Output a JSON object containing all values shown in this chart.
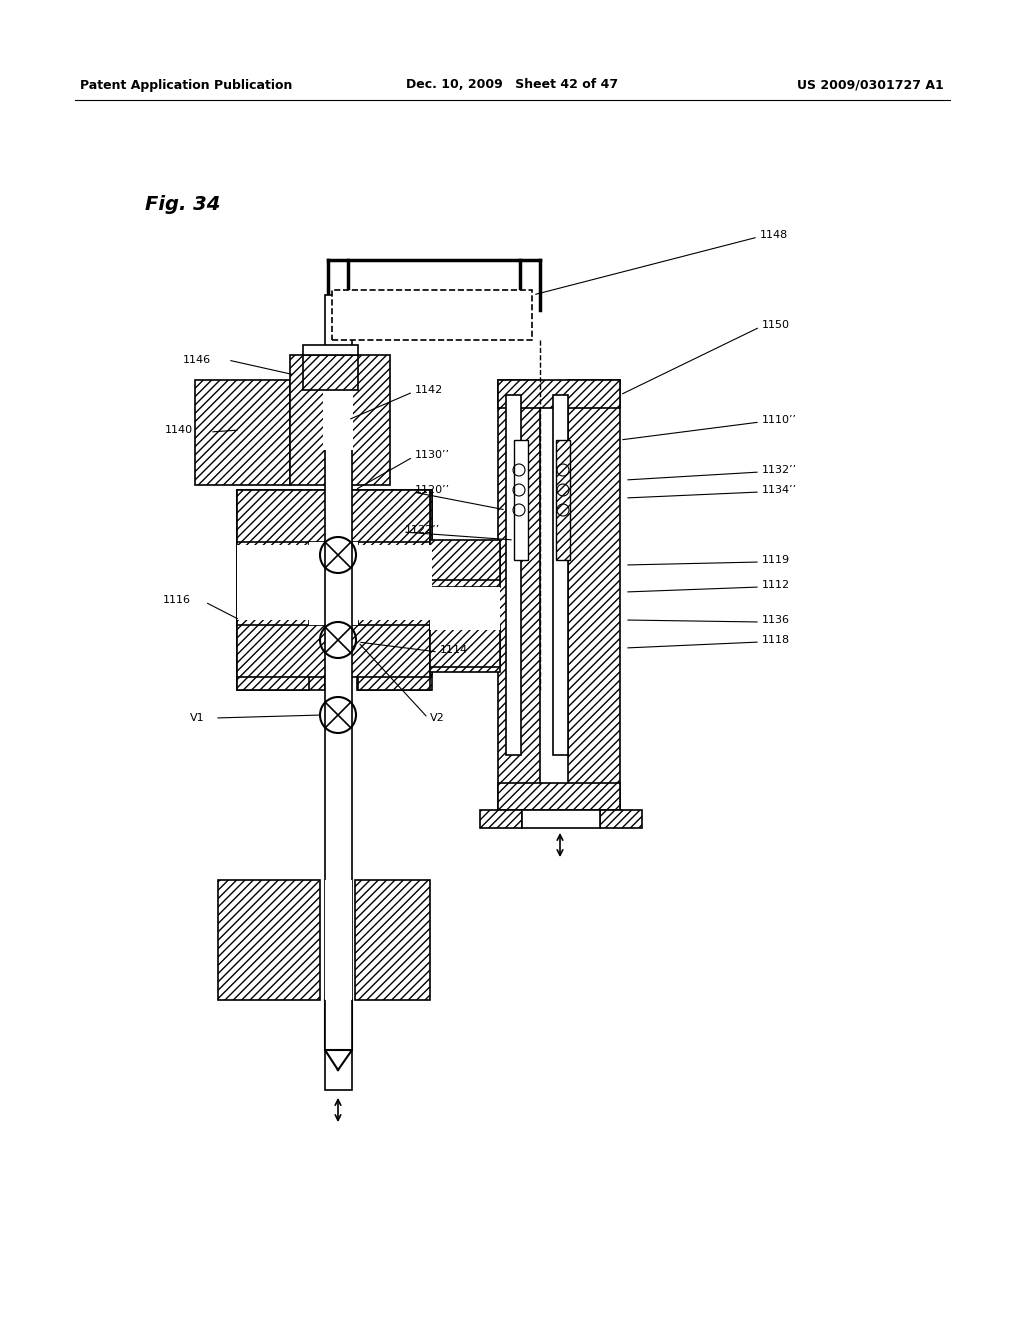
{
  "header_left": "Patent Application Publication",
  "header_center": "Dec. 10, 2009 Sheet 42 of 47",
  "header_right": "US 2009/0301727 A1",
  "fig_label": "Fig. 34",
  "bg_color": "#ffffff"
}
